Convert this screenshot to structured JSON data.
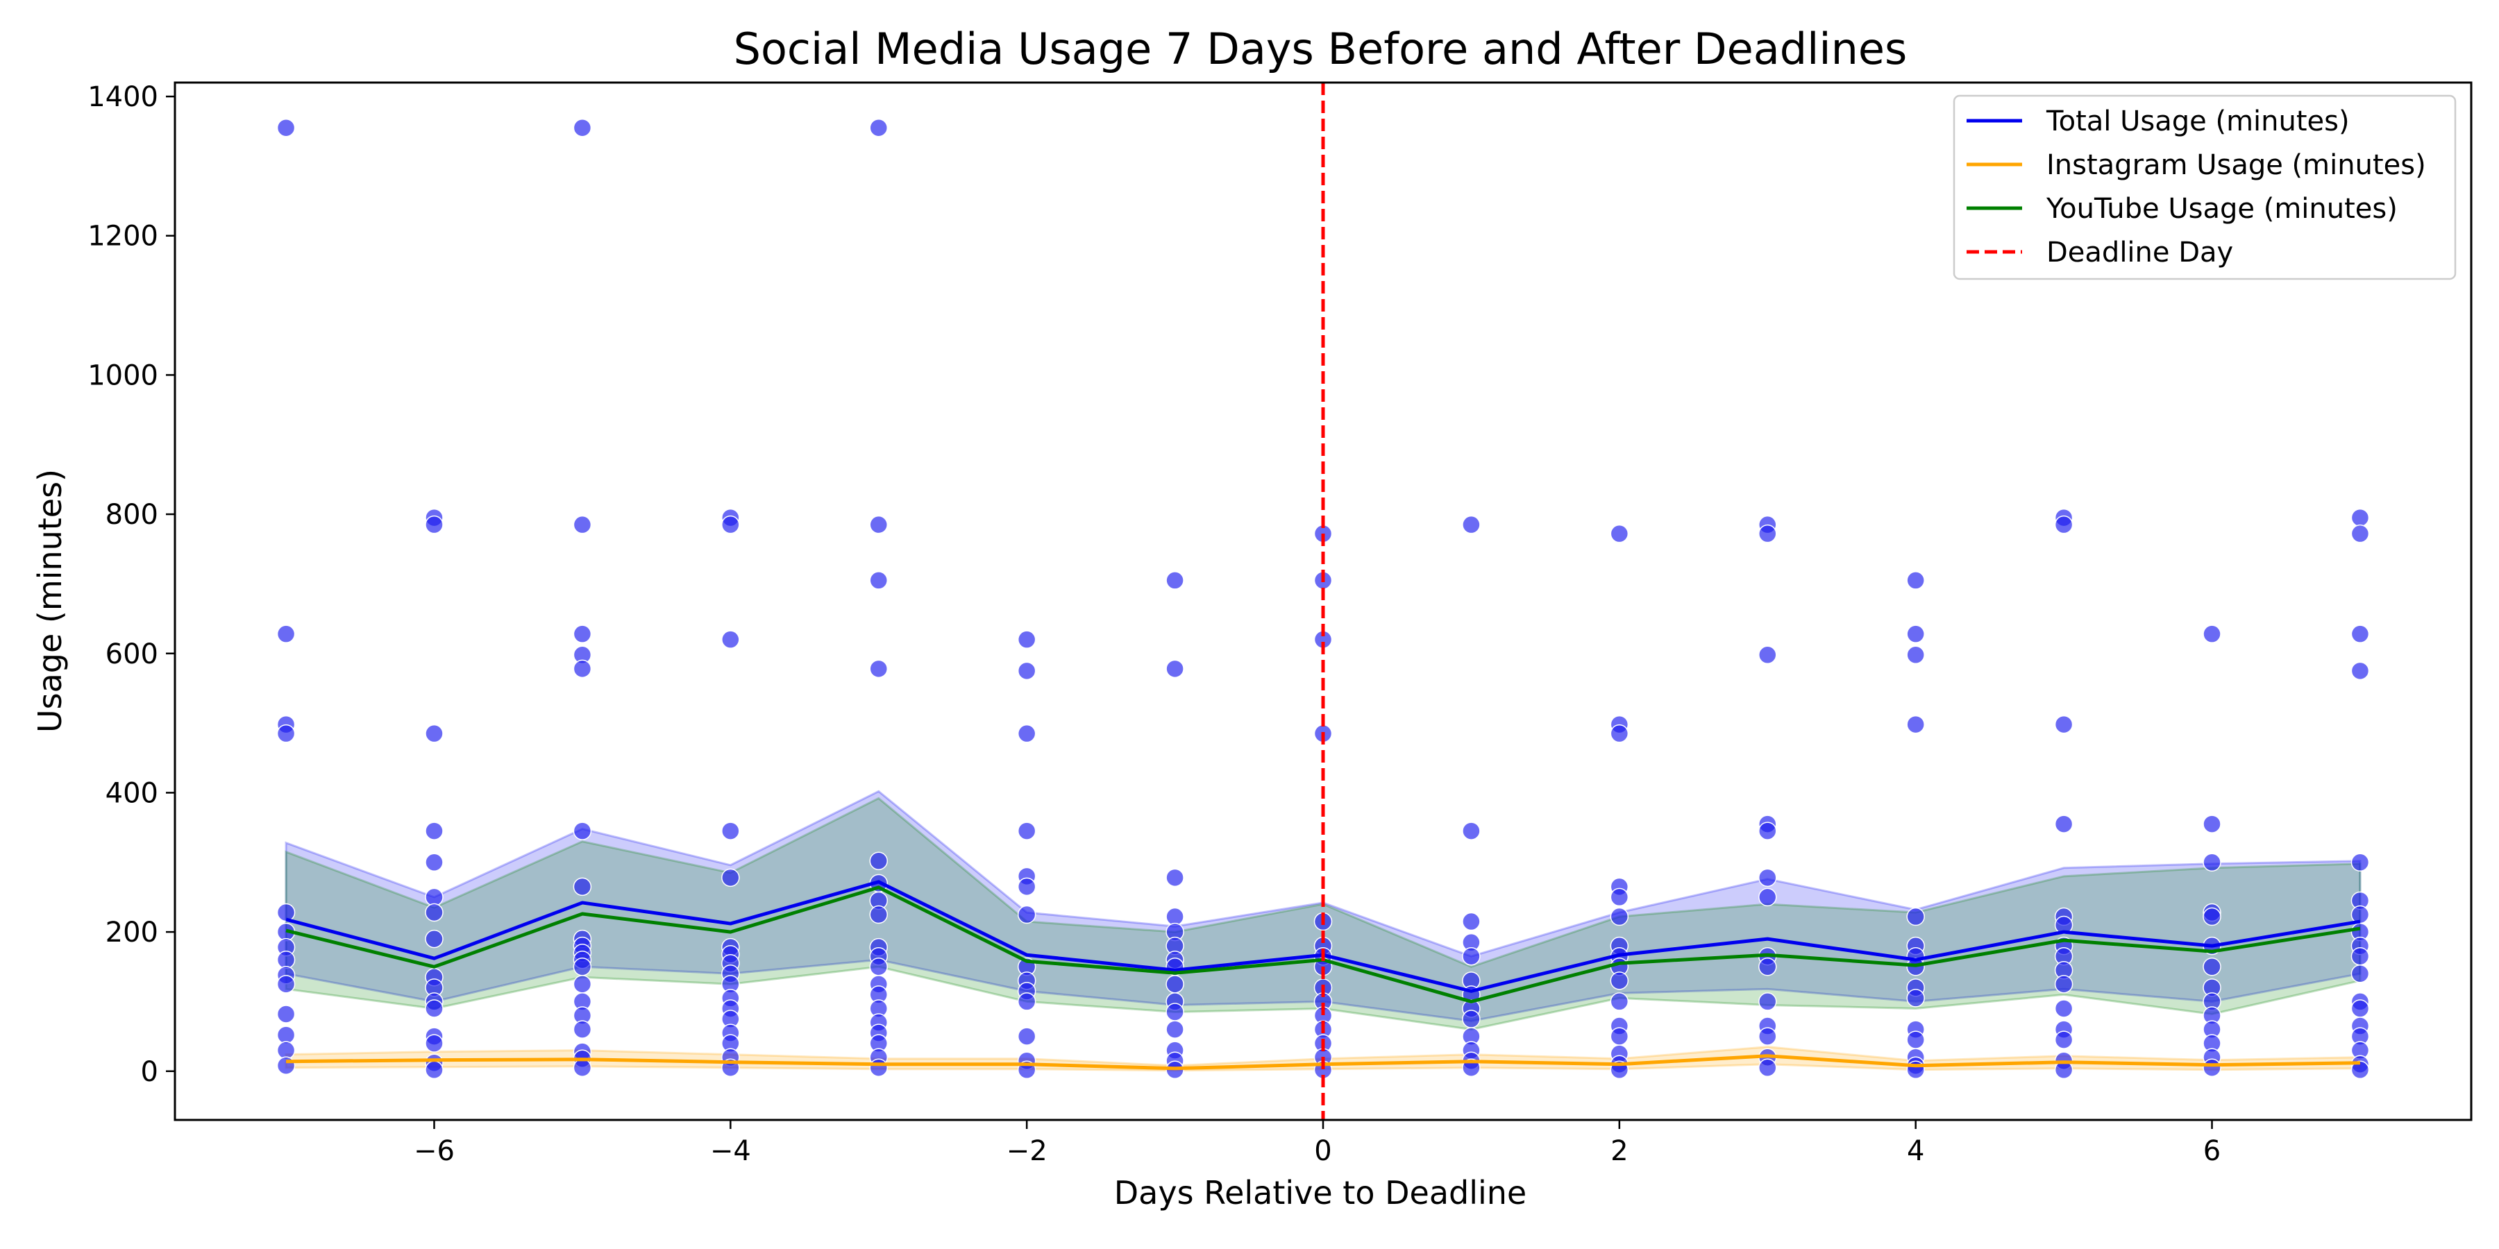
{
  "chart_data": {
    "type": "line",
    "title": "Social Media Usage 7 Days Before and After Deadlines",
    "xlabel": "Days Relative to Deadline",
    "ylabel": "Usage (minutes)",
    "xlim": [
      -7.75,
      7.75
    ],
    "ylim": [
      -70,
      1420
    ],
    "xticks": [
      -6,
      -4,
      -2,
      0,
      2,
      4,
      6
    ],
    "yticks": [
      0,
      200,
      400,
      600,
      800,
      1000,
      1200,
      1400
    ],
    "grid": false,
    "legend_position": "top-right",
    "x": [
      -7,
      -6,
      -5,
      -4,
      -3,
      -2,
      -1,
      0,
      1,
      2,
      3,
      4,
      5,
      6,
      7
    ],
    "series": [
      {
        "name": "Total Usage (minutes)",
        "color": "#0000ee",
        "values": [
          218,
          162,
          242,
          212,
          272,
          167,
          145,
          167,
          115,
          167,
          190,
          160,
          200,
          180,
          215
        ],
        "band_low": [
          140,
          100,
          150,
          140,
          160,
          115,
          95,
          100,
          72,
          112,
          118,
          100,
          118,
          100,
          140
        ],
        "band_high": [
          328,
          250,
          348,
          296,
          402,
          228,
          208,
          242,
          165,
          228,
          276,
          232,
          292,
          298,
          302
        ]
      },
      {
        "name": "Instagram Usage (minutes)",
        "color": "#ffa500",
        "values": [
          14,
          16,
          17,
          13,
          10,
          10,
          4,
          10,
          14,
          10,
          22,
          8,
          13,
          9,
          12
        ],
        "band_low": [
          5,
          6,
          7,
          5,
          3,
          3,
          1,
          3,
          5,
          3,
          10,
          2,
          4,
          2,
          4
        ],
        "band_high": [
          24,
          28,
          30,
          24,
          18,
          18,
          8,
          18,
          24,
          18,
          35,
          15,
          22,
          16,
          20
        ]
      },
      {
        "name": "YouTube Usage (minutes)",
        "color": "#008000",
        "values": [
          202,
          150,
          226,
          200,
          264,
          158,
          141,
          160,
          100,
          155,
          167,
          152,
          188,
          172,
          205
        ],
        "band_low": [
          118,
          90,
          135,
          125,
          150,
          100,
          85,
          90,
          60,
          105,
          95,
          90,
          110,
          82,
          130
        ],
        "band_high": [
          315,
          235,
          330,
          285,
          392,
          215,
          200,
          240,
          150,
          222,
          240,
          228,
          280,
          292,
          298
        ]
      }
    ],
    "scatter": {
      "color": "#1a1aee",
      "points": [
        [
          -7,
          1355
        ],
        [
          -7,
          628
        ],
        [
          -7,
          498
        ],
        [
          -7,
          485
        ],
        [
          -7,
          228
        ],
        [
          -7,
          200
        ],
        [
          -7,
          178
        ],
        [
          -7,
          160
        ],
        [
          -7,
          138
        ],
        [
          -7,
          125
        ],
        [
          -7,
          82
        ],
        [
          -7,
          52
        ],
        [
          -7,
          30
        ],
        [
          -7,
          8
        ],
        [
          -6,
          795
        ],
        [
          -6,
          785
        ],
        [
          -6,
          485
        ],
        [
          -6,
          345
        ],
        [
          -6,
          300
        ],
        [
          -6,
          250
        ],
        [
          -6,
          228
        ],
        [
          -6,
          190
        ],
        [
          -6,
          135
        ],
        [
          -6,
          120
        ],
        [
          -6,
          100
        ],
        [
          -6,
          90
        ],
        [
          -6,
          50
        ],
        [
          -6,
          40
        ],
        [
          -6,
          12
        ],
        [
          -6,
          2
        ],
        [
          -5,
          1355
        ],
        [
          -5,
          785
        ],
        [
          -5,
          628
        ],
        [
          -5,
          598
        ],
        [
          -5,
          578
        ],
        [
          -5,
          345
        ],
        [
          -5,
          265
        ],
        [
          -5,
          190
        ],
        [
          -5,
          180
        ],
        [
          -5,
          170
        ],
        [
          -5,
          160
        ],
        [
          -5,
          150
        ],
        [
          -5,
          125
        ],
        [
          -5,
          100
        ],
        [
          -5,
          80
        ],
        [
          -5,
          60
        ],
        [
          -5,
          28
        ],
        [
          -5,
          18
        ],
        [
          -5,
          5
        ],
        [
          -4,
          795
        ],
        [
          -4,
          785
        ],
        [
          -4,
          620
        ],
        [
          -4,
          345
        ],
        [
          -4,
          278
        ],
        [
          -4,
          178
        ],
        [
          -4,
          168
        ],
        [
          -4,
          155
        ],
        [
          -4,
          140
        ],
        [
          -4,
          125
        ],
        [
          -4,
          105
        ],
        [
          -4,
          90
        ],
        [
          -4,
          75
        ],
        [
          -4,
          55
        ],
        [
          -4,
          40
        ],
        [
          -4,
          20
        ],
        [
          -4,
          5
        ],
        [
          -3,
          1355
        ],
        [
          -3,
          785
        ],
        [
          -3,
          705
        ],
        [
          -3,
          578
        ],
        [
          -3,
          302
        ],
        [
          -3,
          270
        ],
        [
          -3,
          245
        ],
        [
          -3,
          225
        ],
        [
          -3,
          178
        ],
        [
          -3,
          165
        ],
        [
          -3,
          150
        ],
        [
          -3,
          125
        ],
        [
          -3,
          110
        ],
        [
          -3,
          90
        ],
        [
          -3,
          70
        ],
        [
          -3,
          55
        ],
        [
          -3,
          40
        ],
        [
          -3,
          20
        ],
        [
          -3,
          5
        ],
        [
          -2,
          620
        ],
        [
          -2,
          575
        ],
        [
          -2,
          485
        ],
        [
          -2,
          345
        ],
        [
          -2,
          280
        ],
        [
          -2,
          265
        ],
        [
          -2,
          225
        ],
        [
          -2,
          150
        ],
        [
          -2,
          130
        ],
        [
          -2,
          115
        ],
        [
          -2,
          100
        ],
        [
          -2,
          50
        ],
        [
          -2,
          15
        ],
        [
          -2,
          2
        ],
        [
          -1,
          705
        ],
        [
          -1,
          578
        ],
        [
          -1,
          278
        ],
        [
          -1,
          222
        ],
        [
          -1,
          200
        ],
        [
          -1,
          180
        ],
        [
          -1,
          160
        ],
        [
          -1,
          150
        ],
        [
          -1,
          125
        ],
        [
          -1,
          100
        ],
        [
          -1,
          85
        ],
        [
          -1,
          60
        ],
        [
          -1,
          30
        ],
        [
          -1,
          15
        ],
        [
          -1,
          2
        ],
        [
          0,
          772
        ],
        [
          0,
          705
        ],
        [
          0,
          620
        ],
        [
          0,
          485
        ],
        [
          0,
          215
        ],
        [
          0,
          180
        ],
        [
          0,
          165
        ],
        [
          0,
          150
        ],
        [
          0,
          120
        ],
        [
          0,
          100
        ],
        [
          0,
          80
        ],
        [
          0,
          60
        ],
        [
          0,
          40
        ],
        [
          0,
          20
        ],
        [
          0,
          2
        ],
        [
          1,
          785
        ],
        [
          1,
          345
        ],
        [
          1,
          215
        ],
        [
          1,
          185
        ],
        [
          1,
          165
        ],
        [
          1,
          130
        ],
        [
          1,
          110
        ],
        [
          1,
          90
        ],
        [
          1,
          75
        ],
        [
          1,
          50
        ],
        [
          1,
          30
        ],
        [
          1,
          15
        ],
        [
          1,
          5
        ],
        [
          2,
          772
        ],
        [
          2,
          498
        ],
        [
          2,
          485
        ],
        [
          2,
          265
        ],
        [
          2,
          250
        ],
        [
          2,
          222
        ],
        [
          2,
          180
        ],
        [
          2,
          165
        ],
        [
          2,
          150
        ],
        [
          2,
          130
        ],
        [
          2,
          100
        ],
        [
          2,
          65
        ],
        [
          2,
          50
        ],
        [
          2,
          25
        ],
        [
          2,
          10
        ],
        [
          2,
          2
        ],
        [
          3,
          785
        ],
        [
          3,
          772
        ],
        [
          3,
          598
        ],
        [
          3,
          355
        ],
        [
          3,
          345
        ],
        [
          3,
          278
        ],
        [
          3,
          250
        ],
        [
          3,
          165
        ],
        [
          3,
          150
        ],
        [
          3,
          100
        ],
        [
          3,
          65
        ],
        [
          3,
          50
        ],
        [
          3,
          20
        ],
        [
          3,
          5
        ],
        [
          4,
          705
        ],
        [
          4,
          628
        ],
        [
          4,
          598
        ],
        [
          4,
          498
        ],
        [
          4,
          222
        ],
        [
          4,
          180
        ],
        [
          4,
          165
        ],
        [
          4,
          150
        ],
        [
          4,
          120
        ],
        [
          4,
          105
        ],
        [
          4,
          60
        ],
        [
          4,
          45
        ],
        [
          4,
          20
        ],
        [
          4,
          8
        ],
        [
          4,
          2
        ],
        [
          5,
          795
        ],
        [
          5,
          785
        ],
        [
          5,
          498
        ],
        [
          5,
          355
        ],
        [
          5,
          222
        ],
        [
          5,
          210
        ],
        [
          5,
          180
        ],
        [
          5,
          165
        ],
        [
          5,
          145
        ],
        [
          5,
          125
        ],
        [
          5,
          90
        ],
        [
          5,
          60
        ],
        [
          5,
          45
        ],
        [
          5,
          15
        ],
        [
          5,
          2
        ],
        [
          6,
          628
        ],
        [
          6,
          355
        ],
        [
          6,
          300
        ],
        [
          6,
          228
        ],
        [
          6,
          222
        ],
        [
          6,
          180
        ],
        [
          6,
          150
        ],
        [
          6,
          120
        ],
        [
          6,
          100
        ],
        [
          6,
          80
        ],
        [
          6,
          60
        ],
        [
          6,
          40
        ],
        [
          6,
          20
        ],
        [
          6,
          5
        ],
        [
          7,
          795
        ],
        [
          7,
          772
        ],
        [
          7,
          628
        ],
        [
          7,
          575
        ],
        [
          7,
          300
        ],
        [
          7,
          245
        ],
        [
          7,
          225
        ],
        [
          7,
          200
        ],
        [
          7,
          180
        ],
        [
          7,
          165
        ],
        [
          7,
          140
        ],
        [
          7,
          100
        ],
        [
          7,
          90
        ],
        [
          7,
          65
        ],
        [
          7,
          50
        ],
        [
          7,
          30
        ],
        [
          7,
          10
        ],
        [
          7,
          2
        ]
      ]
    },
    "deadline_line": {
      "name": "Deadline Day",
      "x": 0,
      "color": "#ff0000"
    }
  }
}
